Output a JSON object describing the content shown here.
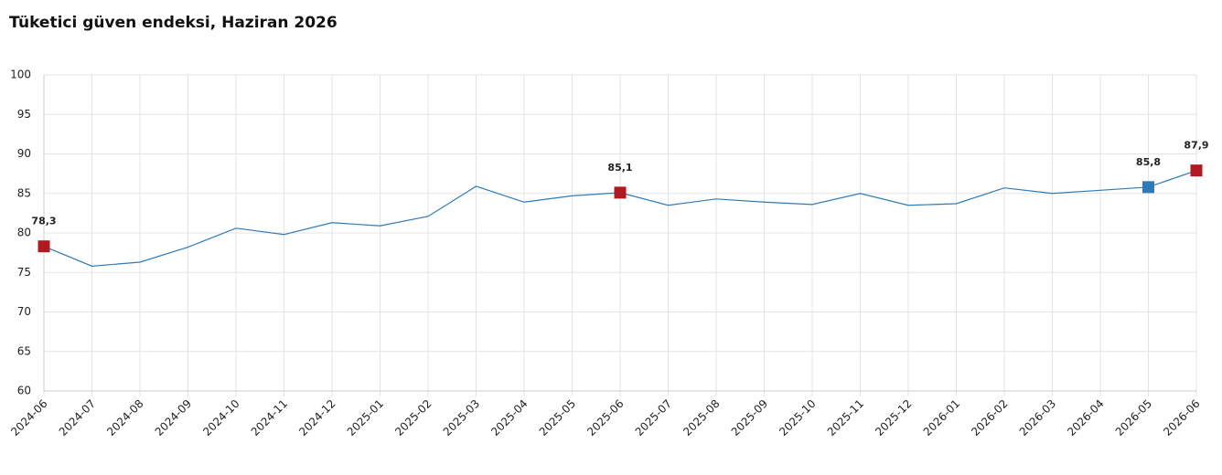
{
  "chart_data": {
    "type": "line",
    "title": "Tüketici güven endeksi, Haziran 2026",
    "categories": [
      "2024-06",
      "2024-07",
      "2024-08",
      "2024-09",
      "2024-10",
      "2024-11",
      "2024-12",
      "2025-01",
      "2025-02",
      "2025-03",
      "2025-04",
      "2025-05",
      "2025-06",
      "2025-07",
      "2025-08",
      "2025-09",
      "2025-10",
      "2025-11",
      "2025-12",
      "2026-01",
      "2026-02",
      "2026-03",
      "2026-04",
      "2026-05",
      "2026-06"
    ],
    "values": [
      78.3,
      75.8,
      76.3,
      78.2,
      80.6,
      79.8,
      81.3,
      80.9,
      82.1,
      85.9,
      83.9,
      84.7,
      85.1,
      83.5,
      84.3,
      83.9,
      83.6,
      85.0,
      83.5,
      83.7,
      85.7,
      85.0,
      85.4,
      85.8,
      87.9
    ],
    "value_labels": [
      "78,3",
      null,
      null,
      null,
      null,
      null,
      null,
      null,
      null,
      null,
      null,
      null,
      "85,1",
      null,
      null,
      null,
      null,
      null,
      null,
      null,
      null,
      null,
      null,
      "85,8",
      "87,9"
    ],
    "marker_colors": [
      "#b0191f",
      null,
      null,
      null,
      null,
      null,
      null,
      null,
      null,
      null,
      null,
      null,
      "#b0191f",
      null,
      null,
      null,
      null,
      null,
      null,
      null,
      null,
      null,
      null,
      "#2f7bb8",
      "#b0191f"
    ],
    "color": "#2f7bb8",
    "ylim": [
      60,
      100
    ],
    "yticks": [
      60,
      65,
      70,
      75,
      80,
      85,
      90,
      95,
      100
    ],
    "grid": true
  }
}
